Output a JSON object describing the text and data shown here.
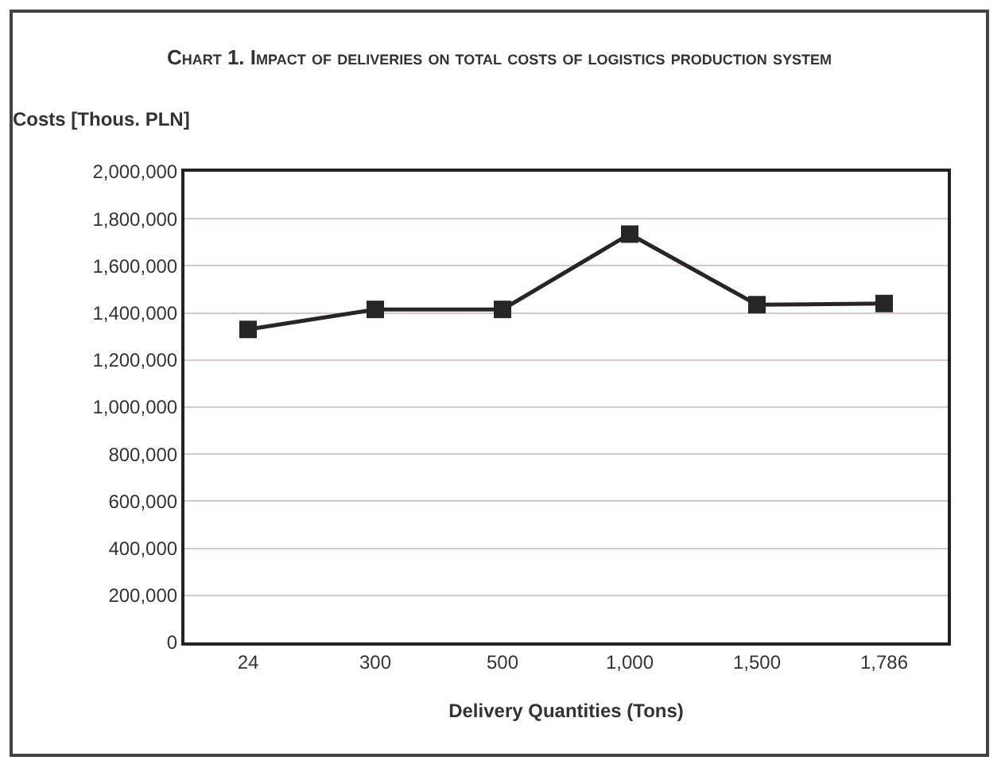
{
  "chart_data": {
    "type": "line",
    "title": "Chart 1. Impact of deliveries on total costs of logistics production system",
    "xlabel": "Delivery Quantities (Tons)",
    "ylabel": "Costs [Thous. PLN]",
    "categories": [
      "24",
      "300",
      "500",
      "1,000",
      "1,500",
      "1,786"
    ],
    "series": [
      {
        "color": "#262626",
        "values": [
          1330000,
          1415000,
          1415000,
          1735000,
          1435000,
          1440000
        ]
      }
    ],
    "ylim": [
      0,
      2000000
    ],
    "yticks": [
      {
        "value": 0,
        "label": "0"
      },
      {
        "value": 200000,
        "label": "200,000"
      },
      {
        "value": 400000,
        "label": "400,000"
      },
      {
        "value": 600000,
        "label": "600,000"
      },
      {
        "value": 800000,
        "label": "800,000"
      },
      {
        "value": 1000000,
        "label": "1,000,000"
      },
      {
        "value": 1200000,
        "label": "1,200,000"
      },
      {
        "value": 1400000,
        "label": "1,400,000"
      },
      {
        "value": 1600000,
        "label": "1,600,000"
      },
      {
        "value": 1800000,
        "label": "1,800,000"
      },
      {
        "value": 2000000,
        "label": "2,000,000"
      }
    ],
    "grid": "y",
    "marker": "square",
    "line_style": "solid"
  }
}
